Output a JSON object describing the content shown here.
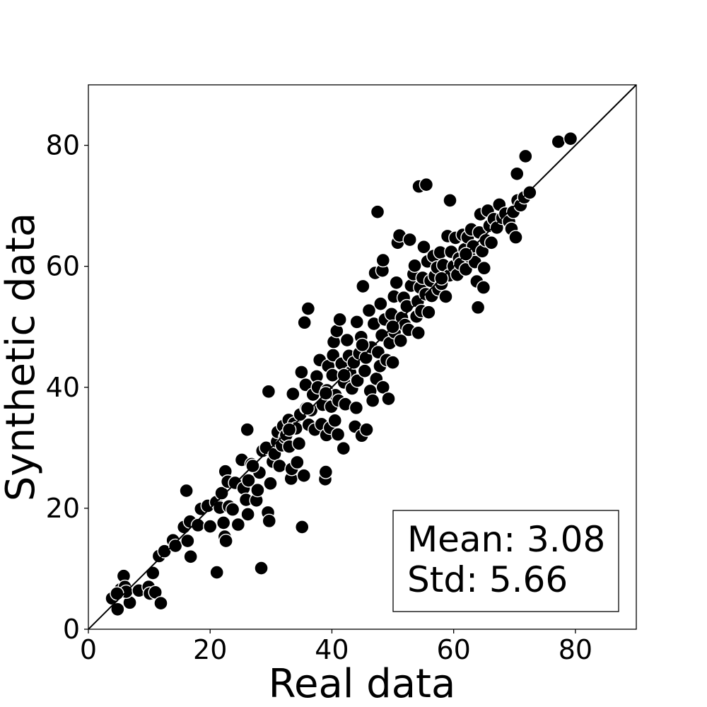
{
  "chart_data": {
    "type": "scatter",
    "title": "",
    "xlabel": "Real data",
    "ylabel": "Synthetic data",
    "xlim": [
      0,
      90
    ],
    "ylim": [
      0,
      90
    ],
    "xticks": [
      "0",
      "20",
      "40",
      "60",
      "80"
    ],
    "yticks": [
      "0",
      "20",
      "40",
      "60",
      "80"
    ],
    "grid": false,
    "reference_line": "y = x",
    "marker_color": "#000000",
    "marker_edge_color": "#ffffff",
    "stats": {
      "mean_label": "Mean: 3.08",
      "std_label": "Std: 5.66"
    },
    "stats_box_position": "bottom-right",
    "points": [
      [
        3.9,
        5.1
      ],
      [
        4.8,
        3.3
      ],
      [
        5.3,
        6.6
      ],
      [
        5.8,
        8.8
      ],
      [
        6.0,
        7.0
      ],
      [
        6.8,
        4.4
      ],
      [
        6.2,
        6.2
      ],
      [
        4.7,
        5.9
      ],
      [
        8.3,
        6.4
      ],
      [
        9.9,
        7.0
      ],
      [
        10.1,
        5.9
      ],
      [
        10.6,
        9.3
      ],
      [
        11.0,
        6.1
      ],
      [
        11.6,
        12.1
      ],
      [
        11.9,
        4.3
      ],
      [
        12.5,
        12.9
      ],
      [
        13.9,
        14.7
      ],
      [
        14.3,
        13.8
      ],
      [
        15.7,
        16.9
      ],
      [
        16.3,
        14.6
      ],
      [
        16.1,
        22.9
      ],
      [
        16.7,
        17.8
      ],
      [
        16.8,
        12.0
      ],
      [
        18.0,
        17.2
      ],
      [
        18.5,
        19.9
      ],
      [
        19.6,
        20.4
      ],
      [
        20.0,
        17.0
      ],
      [
        21.0,
        21.0
      ],
      [
        21.1,
        9.4
      ],
      [
        21.6,
        20.1
      ],
      [
        21.9,
        22.5
      ],
      [
        22.2,
        17.6
      ],
      [
        22.4,
        15.3
      ],
      [
        22.6,
        14.6
      ],
      [
        22.5,
        26.1
      ],
      [
        22.9,
        24.4
      ],
      [
        23.1,
        20.3
      ],
      [
        23.7,
        19.8
      ],
      [
        24.1,
        24.2
      ],
      [
        24.6,
        17.3
      ],
      [
        25.2,
        28.0
      ],
      [
        25.5,
        23.3
      ],
      [
        25.9,
        21.4
      ],
      [
        26.1,
        33.0
      ],
      [
        26.3,
        24.6
      ],
      [
        26.2,
        19.0
      ],
      [
        26.8,
        27.3
      ],
      [
        27.6,
        21.3
      ],
      [
        27.8,
        23.0
      ],
      [
        28.1,
        25.9
      ],
      [
        28.4,
        10.1
      ],
      [
        28.6,
        29.5
      ],
      [
        29.2,
        30.0
      ],
      [
        29.5,
        19.3
      ],
      [
        29.6,
        39.3
      ],
      [
        29.7,
        17.9
      ],
      [
        29.9,
        24.1
      ],
      [
        30.3,
        27.7
      ],
      [
        30.6,
        29.0
      ],
      [
        31.0,
        31.0
      ],
      [
        31.1,
        32.6
      ],
      [
        31.4,
        27.0
      ],
      [
        31.8,
        30.4
      ],
      [
        32.0,
        33.6
      ],
      [
        32.3,
        31.7
      ],
      [
        32.5,
        32.1
      ],
      [
        32.9,
        34.6
      ],
      [
        33.0,
        30.2
      ],
      [
        33.3,
        24.9
      ],
      [
        33.4,
        26.5
      ],
      [
        33.6,
        38.9
      ],
      [
        33.8,
        34.0
      ],
      [
        34.1,
        33.2
      ],
      [
        34.3,
        27.6
      ],
      [
        34.6,
        30.7
      ],
      [
        34.8,
        35.5
      ],
      [
        35.0,
        42.5
      ],
      [
        35.1,
        16.9
      ],
      [
        35.4,
        25.4
      ],
      [
        35.5,
        50.7
      ],
      [
        35.7,
        40.4
      ],
      [
        35.8,
        36.6
      ],
      [
        36.1,
        53.0
      ],
      [
        36.2,
        33.8
      ],
      [
        36.6,
        36.2
      ],
      [
        36.9,
        38.8
      ],
      [
        37.2,
        33.0
      ],
      [
        37.5,
        41.8
      ],
      [
        37.7,
        40.0
      ],
      [
        38.0,
        44.5
      ],
      [
        38.3,
        33.9
      ],
      [
        38.5,
        37.1
      ],
      [
        38.9,
        24.8
      ],
      [
        39.0,
        26.0
      ],
      [
        39.1,
        32.1
      ],
      [
        39.2,
        39.5
      ],
      [
        39.4,
        43.5
      ],
      [
        39.7,
        33.3
      ],
      [
        39.9,
        36.8
      ],
      [
        40.1,
        42.0
      ],
      [
        40.2,
        45.3
      ],
      [
        40.3,
        47.5
      ],
      [
        40.5,
        34.5
      ],
      [
        40.6,
        38.7
      ],
      [
        40.8,
        49.3
      ],
      [
        41.0,
        32.2
      ],
      [
        41.1,
        37.8
      ],
      [
        41.3,
        51.2
      ],
      [
        41.6,
        43.9
      ],
      [
        41.9,
        29.9
      ],
      [
        42.0,
        40.8
      ],
      [
        42.2,
        37.2
      ],
      [
        42.5,
        47.8
      ],
      [
        42.8,
        45.2
      ],
      [
        43.0,
        42.4
      ],
      [
        43.3,
        39.8
      ],
      [
        43.6,
        44.1
      ],
      [
        43.8,
        33.5
      ],
      [
        44.0,
        36.6
      ],
      [
        44.1,
        50.8
      ],
      [
        44.2,
        41.1
      ],
      [
        44.5,
        45.6
      ],
      [
        44.8,
        48.3
      ],
      [
        44.9,
        32.0
      ],
      [
        45.1,
        56.7
      ],
      [
        45.4,
        42.7
      ],
      [
        45.6,
        44.9
      ],
      [
        45.7,
        33.0
      ],
      [
        46.1,
        52.7
      ],
      [
        46.3,
        39.4
      ],
      [
        46.5,
        46.6
      ],
      [
        46.7,
        37.8
      ],
      [
        46.9,
        50.5
      ],
      [
        47.1,
        58.9
      ],
      [
        47.3,
        41.4
      ],
      [
        47.5,
        69.0
      ],
      [
        47.6,
        45.8
      ],
      [
        47.9,
        43.5
      ],
      [
        48.0,
        53.8
      ],
      [
        48.2,
        48.6
      ],
      [
        48.3,
        59.3
      ],
      [
        48.4,
        61.0
      ],
      [
        48.4,
        40.0
      ],
      [
        48.7,
        51.2
      ],
      [
        49.0,
        44.5
      ],
      [
        49.3,
        38.1
      ],
      [
        49.5,
        47.3
      ],
      [
        49.8,
        52.1
      ],
      [
        50.0,
        44.1
      ],
      [
        50.2,
        55.0
      ],
      [
        50.3,
        49.1
      ],
      [
        50.6,
        57.3
      ],
      [
        50.8,
        63.9
      ],
      [
        51.1,
        65.1
      ],
      [
        51.3,
        47.7
      ],
      [
        51.5,
        51.5
      ],
      [
        51.8,
        54.8
      ],
      [
        52.0,
        50.3
      ],
      [
        52.3,
        53.4
      ],
      [
        52.6,
        49.5
      ],
      [
        52.8,
        64.4
      ],
      [
        53.0,
        56.8
      ],
      [
        53.4,
        58.7
      ],
      [
        53.6,
        60.1
      ],
      [
        53.9,
        51.7
      ],
      [
        54.1,
        54.2
      ],
      [
        54.2,
        49.0
      ],
      [
        54.3,
        73.2
      ],
      [
        54.5,
        56.5
      ],
      [
        54.7,
        52.6
      ],
      [
        54.9,
        58.1
      ],
      [
        55.1,
        63.2
      ],
      [
        55.4,
        55.4
      ],
      [
        55.5,
        73.5
      ],
      [
        55.7,
        60.8
      ],
      [
        55.9,
        52.4
      ],
      [
        56.2,
        57.6
      ],
      [
        56.4,
        55.1
      ],
      [
        56.7,
        61.7
      ],
      [
        56.9,
        58.4
      ],
      [
        57.3,
        59.8
      ],
      [
        57.5,
        56.2
      ],
      [
        57.8,
        62.3
      ],
      [
        58.0,
        57.1
      ],
      [
        58.3,
        60.2
      ],
      [
        58.7,
        55.0
      ],
      [
        59.0,
        65.0
      ],
      [
        59.3,
        58.5
      ],
      [
        59.4,
        70.9
      ],
      [
        59.6,
        62.4
      ],
      [
        60.0,
        60.0
      ],
      [
        60.3,
        64.7
      ],
      [
        60.6,
        58.6
      ],
      [
        60.9,
        61.3
      ],
      [
        61.1,
        60.4
      ],
      [
        61.5,
        65.2
      ],
      [
        61.8,
        62.8
      ],
      [
        62.0,
        59.5
      ],
      [
        62.3,
        64.8
      ],
      [
        62.6,
        61.6
      ],
      [
        62.9,
        66.1
      ],
      [
        63.2,
        63.3
      ],
      [
        63.5,
        60.7
      ],
      [
        63.8,
        57.5
      ],
      [
        64.0,
        53.2
      ],
      [
        64.2,
        65.6
      ],
      [
        64.4,
        68.6
      ],
      [
        64.7,
        62.5
      ],
      [
        64.9,
        56.5
      ],
      [
        65.0,
        59.7
      ],
      [
        65.3,
        64.3
      ],
      [
        65.6,
        69.2
      ],
      [
        65.9,
        66.7
      ],
      [
        66.2,
        63.9
      ],
      [
        66.6,
        67.8
      ],
      [
        67.1,
        66.4
      ],
      [
        67.5,
        70.2
      ],
      [
        68.0,
        68.0
      ],
      [
        68.5,
        68.7
      ],
      [
        69.1,
        67.4
      ],
      [
        69.5,
        66.2
      ],
      [
        69.8,
        69.0
      ],
      [
        70.2,
        64.8
      ],
      [
        70.4,
        75.3
      ],
      [
        70.5,
        70.9
      ],
      [
        71.0,
        70.1
      ],
      [
        71.6,
        71.4
      ],
      [
        71.8,
        78.2
      ],
      [
        72.5,
        72.2
      ],
      [
        77.2,
        80.6
      ],
      [
        79.2,
        81.1
      ],
      [
        27.0,
        27.0
      ],
      [
        36.0,
        36.5
      ],
      [
        42.0,
        42.0
      ],
      [
        45.0,
        47.0
      ],
      [
        50.0,
        50.0
      ],
      [
        58.0,
        58.0
      ],
      [
        62.0,
        62.0
      ],
      [
        39.0,
        39.0
      ],
      [
        33.0,
        33.0
      ]
    ]
  }
}
